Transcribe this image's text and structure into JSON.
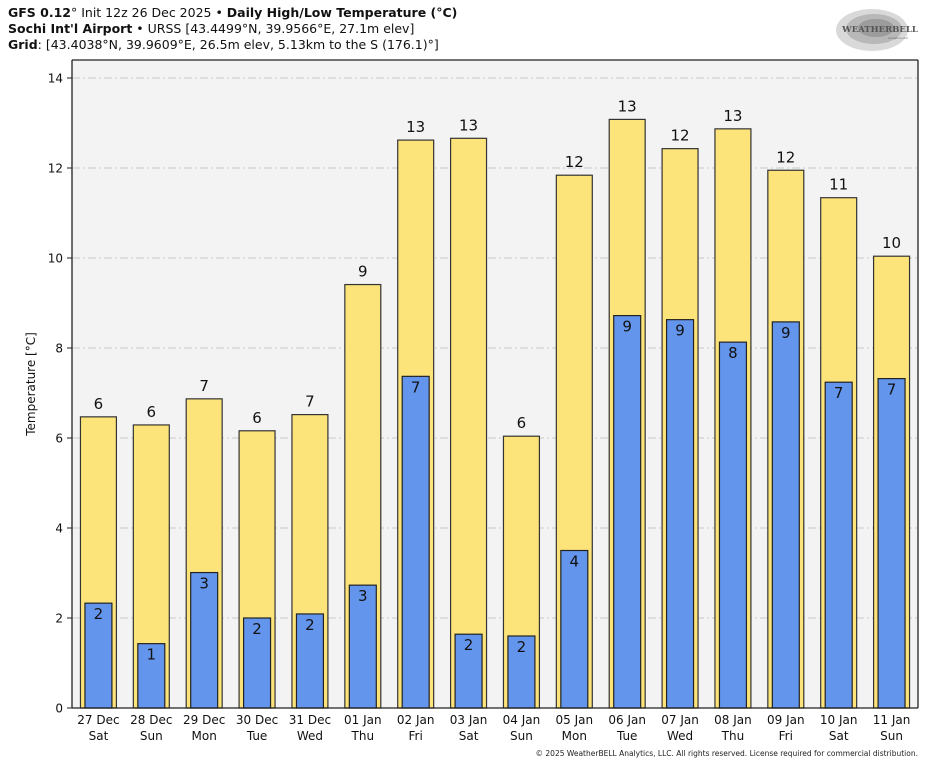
{
  "header": {
    "line1_model": "GFS 0.12",
    "line1_deg": "°",
    "line1_init": " Init 12z 26 Dec 2025 • ",
    "line1_title": "Daily High/Low Temperature (°C)",
    "line2_station": "Sochi Int'l Airport",
    "line2_rest": " • URSS [43.4499°N, 39.9566°E, 27.1m elev]",
    "line3_label": "Grid",
    "line3_rest": ": [43.4038°N, 39.9609°E, 26.5m elev, 5.13km to the S (176.1)°]"
  },
  "logo": {
    "text_main": "WEATHERBELL",
    "text_sub": "Analytics LLC"
  },
  "copyright": "© 2025 WeatherBELL Analytics, LLC. All rights reserved. License required for commercial distribution.",
  "chart_data": {
    "type": "bar",
    "title": "Daily High/Low Temperature (°C)",
    "xlabel": "",
    "ylabel": "Temperature [°C]",
    "ylim": [
      0,
      14.2
    ],
    "yticks": [
      0,
      2,
      4,
      6,
      8,
      10,
      12,
      14
    ],
    "grid": true,
    "categories": [
      "27 Dec",
      "28 Dec",
      "29 Dec",
      "30 Dec",
      "31 Dec",
      "01 Jan",
      "02 Jan",
      "03 Jan",
      "04 Jan",
      "05 Jan",
      "06 Jan",
      "07 Jan",
      "08 Jan",
      "09 Jan",
      "10 Jan",
      "11 Jan"
    ],
    "weekdays": [
      "Sat",
      "Sun",
      "Mon",
      "Tue",
      "Wed",
      "Thu",
      "Fri",
      "Sat",
      "Sun",
      "Mon",
      "Tue",
      "Wed",
      "Thu",
      "Fri",
      "Sat",
      "Sun"
    ],
    "series": [
      {
        "name": "High",
        "color": "#fde47a",
        "values": [
          6.47,
          6.29,
          6.87,
          6.16,
          6.52,
          9.41,
          12.62,
          12.66,
          6.04,
          11.84,
          13.08,
          12.43,
          12.87,
          11.95,
          11.34,
          10.04
        ],
        "labels": [
          "6",
          "6",
          "7",
          "6",
          "7",
          "9",
          "13",
          "13",
          "6",
          "12",
          "13",
          "12",
          "13",
          "12",
          "11",
          "10"
        ]
      },
      {
        "name": "Low",
        "color": "#6495ed",
        "values": [
          2.33,
          1.43,
          3.01,
          2.0,
          2.09,
          2.73,
          7.37,
          1.64,
          1.6,
          3.5,
          8.72,
          8.63,
          8.13,
          8.58,
          7.24,
          7.32
        ],
        "labels": [
          "2",
          "1",
          "3",
          "2",
          "2",
          "3",
          "7",
          "2",
          "2",
          "4",
          "9",
          "9",
          "8",
          "9",
          "7",
          "7"
        ]
      }
    ]
  }
}
